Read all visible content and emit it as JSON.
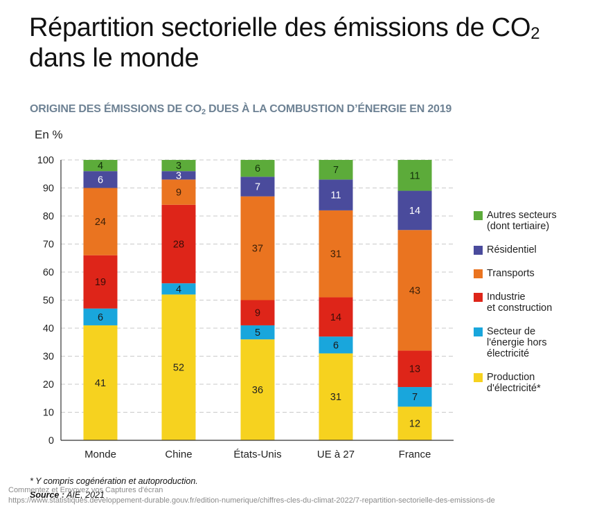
{
  "title": {
    "line1_main": "Répartition sectorielle des émissions de CO",
    "line1_sub": "2",
    "line2": "dans le monde"
  },
  "subtitle": {
    "main": "ORIGINE DES ÉMISSIONS DE CO",
    "sub": "2",
    "rest": " DUES À LA COMBUSTION D’ÉNERGIE EN 2019"
  },
  "unit_label": "En %",
  "footnote": "* Y compris cogénération et autoproduction.",
  "source": {
    "label": "Source :",
    "value": " AIE, 2021"
  },
  "overlay": {
    "caption": "Commentez et Envoyez vos Captures d'écran",
    "url": "https://www.statistiques.developpement-durable.gouv.fr/edition-numerique/chiffres-cles-du-climat-2022/7-repartition-sectorielle-des-emissions-de"
  },
  "chart_data": {
    "type": "bar",
    "stacked": true,
    "title": "ORIGINE DES ÉMISSIONS DE CO2 DUES À LA COMBUSTION D’ÉNERGIE EN 2019",
    "xlabel": "",
    "ylabel": "En %",
    "ylim": [
      0,
      100
    ],
    "yticks": [
      0,
      10,
      20,
      30,
      40,
      50,
      60,
      70,
      80,
      90,
      100
    ],
    "grid": true,
    "legend_position": "right",
    "categories": [
      "Monde",
      "Chine",
      "États-Unis",
      "UE à 27",
      "France"
    ],
    "series": [
      {
        "name": "Production\nd'électricité*",
        "color": "#f6d21f",
        "label_color": "#222222",
        "values": [
          41,
          52,
          36,
          31,
          12
        ]
      },
      {
        "name": "Secteur de\nl'énergie hors\nélectricité",
        "color": "#19a6dc",
        "label_color": "#1a1a1a",
        "values": [
          6,
          4,
          5,
          6,
          7
        ]
      },
      {
        "name": "Industrie\net construction",
        "color": "#de2519",
        "label_color": "#3a0d08",
        "values": [
          19,
          28,
          9,
          14,
          13
        ]
      },
      {
        "name": "Transports",
        "color": "#ea7420",
        "label_color": "#3a1f08",
        "values": [
          24,
          9,
          37,
          31,
          43
        ]
      },
      {
        "name": "Résidentiel",
        "color": "#4a4b9c",
        "label_color": "#ffffff",
        "values": [
          6,
          3,
          7,
          11,
          14
        ]
      },
      {
        "name": "Autres secteurs\n(dont tertiaire)",
        "color": "#5cab3a",
        "label_color": "#12300a",
        "values": [
          4,
          3,
          6,
          7,
          11
        ]
      }
    ],
    "legend_order": [
      5,
      4,
      3,
      2,
      1,
      0
    ]
  }
}
